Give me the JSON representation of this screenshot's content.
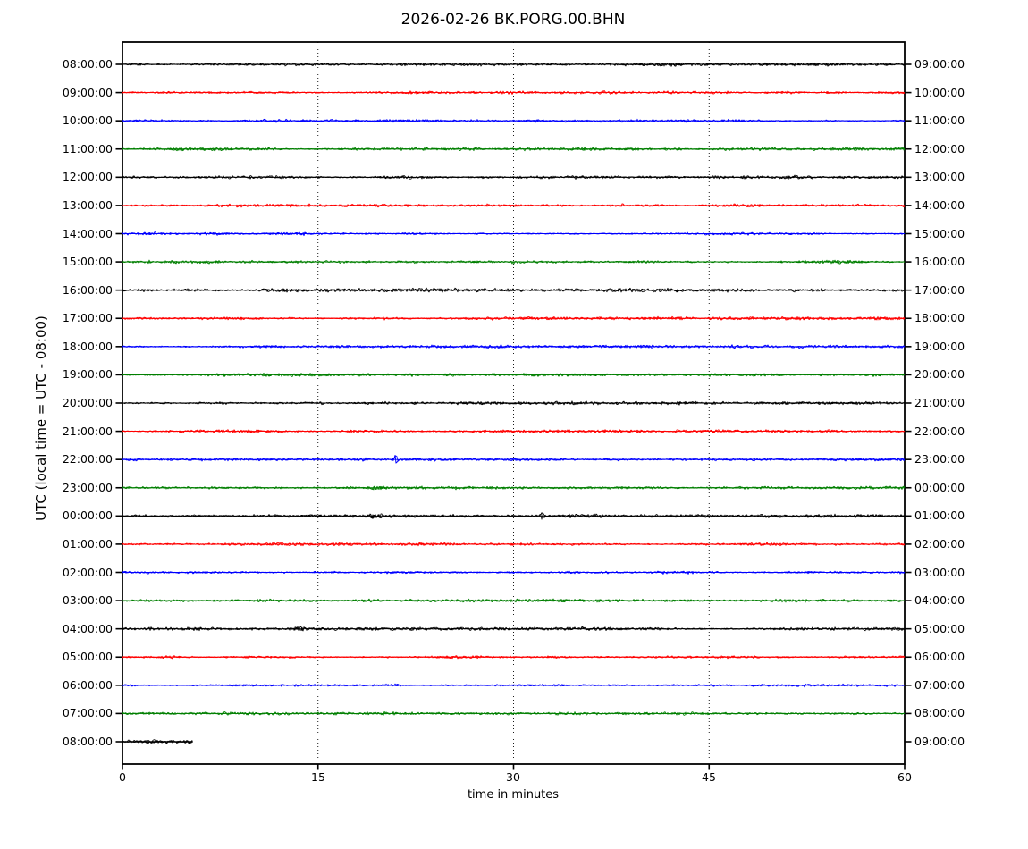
{
  "title": "2026-02-26 BK.PORG.00.BHN",
  "chart_data": {
    "type": "line",
    "subtype": "seismogram-helicorder-dayplot",
    "title": "2026-02-26 BK.PORG.00.BHN",
    "date": "2026-02-26",
    "station_id": "BK.PORG.00.BHN",
    "xlabel": "time in minutes",
    "ylabel": "UTC (local time = UTC - 08:00)",
    "xlim": [
      0,
      60
    ],
    "x_ticks": [
      0,
      15,
      30,
      45,
      60
    ],
    "gridlines_minutes": [
      15,
      30,
      45
    ],
    "grid_style": "vertical dotted black",
    "minutes_per_row": 60,
    "trace_colors_cycle": [
      "#000000",
      "#ff0000",
      "#0000ff",
      "#007f00"
    ],
    "rows": [
      {
        "left_label": "08:00:00",
        "right_label": "09:00:00",
        "color": "#000000",
        "noise_amp": 1.3,
        "extent_min": [
          0,
          60
        ],
        "events": []
      },
      {
        "left_label": "09:00:00",
        "right_label": "10:00:00",
        "color": "#ff0000",
        "noise_amp": 1.15,
        "extent_min": [
          0,
          60
        ],
        "events": []
      },
      {
        "left_label": "10:00:00",
        "right_label": "11:00:00",
        "color": "#0000ff",
        "noise_amp": 1.1,
        "extent_min": [
          0,
          60
        ],
        "events": []
      },
      {
        "left_label": "11:00:00",
        "right_label": "12:00:00",
        "color": "#007f00",
        "noise_amp": 1.2,
        "extent_min": [
          0,
          60
        ],
        "events": []
      },
      {
        "left_label": "12:00:00",
        "right_label": "13:00:00",
        "color": "#000000",
        "noise_amp": 1.25,
        "extent_min": [
          0,
          60
        ],
        "events": []
      },
      {
        "left_label": "13:00:00",
        "right_label": "14:00:00",
        "color": "#ff0000",
        "noise_amp": 1.15,
        "extent_min": [
          0,
          60
        ],
        "events": []
      },
      {
        "left_label": "14:00:00",
        "right_label": "15:00:00",
        "color": "#0000ff",
        "noise_amp": 1.1,
        "extent_min": [
          0,
          60
        ],
        "events": []
      },
      {
        "left_label": "15:00:00",
        "right_label": "16:00:00",
        "color": "#007f00",
        "noise_amp": 1.2,
        "extent_min": [
          0,
          60
        ],
        "events": []
      },
      {
        "left_label": "16:00:00",
        "right_label": "17:00:00",
        "color": "#000000",
        "noise_amp": 1.5,
        "extent_min": [
          0,
          60
        ],
        "events": []
      },
      {
        "left_label": "17:00:00",
        "right_label": "18:00:00",
        "color": "#ff0000",
        "noise_amp": 1.15,
        "extent_min": [
          0,
          60
        ],
        "events": []
      },
      {
        "left_label": "18:00:00",
        "right_label": "19:00:00",
        "color": "#0000ff",
        "noise_amp": 1.1,
        "extent_min": [
          0,
          60
        ],
        "events": []
      },
      {
        "left_label": "19:00:00",
        "right_label": "20:00:00",
        "color": "#007f00",
        "noise_amp": 1.2,
        "extent_min": [
          0,
          60
        ],
        "events": []
      },
      {
        "left_label": "20:00:00",
        "right_label": "21:00:00",
        "color": "#000000",
        "noise_amp": 1.2,
        "extent_min": [
          0,
          60
        ],
        "events": []
      },
      {
        "left_label": "21:00:00",
        "right_label": "22:00:00",
        "color": "#ff0000",
        "noise_amp": 1.15,
        "extent_min": [
          0,
          60
        ],
        "events": []
      },
      {
        "left_label": "22:00:00",
        "right_label": "23:00:00",
        "color": "#0000ff",
        "noise_amp": 1.1,
        "extent_min": [
          0,
          60
        ],
        "events": [
          {
            "minute": 21.0,
            "amplitude": 4.0,
            "sigma": 0.13
          }
        ]
      },
      {
        "left_label": "23:00:00",
        "right_label": "00:00:00",
        "color": "#007f00",
        "noise_amp": 1.2,
        "extent_min": [
          0,
          60
        ],
        "events": [
          {
            "minute": 19.4,
            "amplitude": 1.5,
            "sigma": 0.5
          }
        ]
      },
      {
        "left_label": "00:00:00",
        "right_label": "01:00:00",
        "color": "#000000",
        "noise_amp": 1.3,
        "extent_min": [
          0,
          60
        ],
        "events": [
          {
            "minute": 19.5,
            "amplitude": 1.6,
            "sigma": 0.5
          },
          {
            "minute": 32.2,
            "amplitude": 3.0,
            "sigma": 0.12
          }
        ]
      },
      {
        "left_label": "01:00:00",
        "right_label": "02:00:00",
        "color": "#ff0000",
        "noise_amp": 1.15,
        "extent_min": [
          0,
          60
        ],
        "events": []
      },
      {
        "left_label": "02:00:00",
        "right_label": "03:00:00",
        "color": "#0000ff",
        "noise_amp": 1.05,
        "extent_min": [
          0,
          60
        ],
        "events": []
      },
      {
        "left_label": "03:00:00",
        "right_label": "04:00:00",
        "color": "#007f00",
        "noise_amp": 1.2,
        "extent_min": [
          0,
          60
        ],
        "events": []
      },
      {
        "left_label": "04:00:00",
        "right_label": "05:00:00",
        "color": "#000000",
        "noise_amp": 1.25,
        "extent_min": [
          0,
          60
        ],
        "events": [
          {
            "minute": 13.7,
            "amplitude": 1.7,
            "sigma": 0.3
          }
        ]
      },
      {
        "left_label": "05:00:00",
        "right_label": "06:00:00",
        "color": "#ff0000",
        "noise_amp": 1.15,
        "extent_min": [
          0,
          60
        ],
        "events": []
      },
      {
        "left_label": "06:00:00",
        "right_label": "07:00:00",
        "color": "#0000ff",
        "noise_amp": 1.05,
        "extent_min": [
          0,
          60
        ],
        "events": []
      },
      {
        "left_label": "07:00:00",
        "right_label": "08:00:00",
        "color": "#007f00",
        "noise_amp": 1.2,
        "extent_min": [
          0,
          60
        ],
        "events": []
      },
      {
        "left_label": "08:00:00",
        "right_label": "09:00:00",
        "color": "#000000",
        "noise_amp": 1.7,
        "extent_min": [
          0,
          5.4
        ],
        "events": []
      }
    ]
  }
}
